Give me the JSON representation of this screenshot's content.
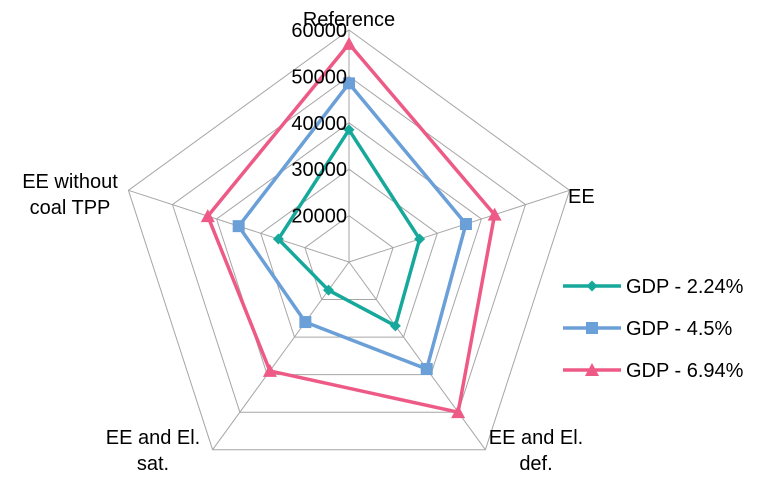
{
  "chart_data": {
    "type": "radar",
    "axes": [
      {
        "label_lines": [
          "Reference"
        ]
      },
      {
        "label_lines": [
          "EE"
        ]
      },
      {
        "label_lines": [
          "EE and El.",
          "def."
        ]
      },
      {
        "label_lines": [
          "EE and El.",
          "sat."
        ]
      },
      {
        "label_lines": [
          "EE without",
          "coal TPP"
        ]
      }
    ],
    "rlim": [
      10000,
      60000
    ],
    "ticks": [
      20000,
      30000,
      40000,
      50000,
      60000
    ],
    "tick_labels": [
      "20000",
      "30000",
      "40000",
      "50000",
      "60000"
    ],
    "grid": true,
    "legend_position": "right",
    "series": [
      {
        "name": "GDP - 2.24%",
        "color": "#17A89C",
        "marker": "diamond",
        "values": [
          38500,
          26000,
          27000,
          17500,
          26000
        ]
      },
      {
        "name": "GDP - 4.5%",
        "color": "#6A9FD8",
        "marker": "square",
        "values": [
          48500,
          36500,
          38500,
          26000,
          35000
        ]
      },
      {
        "name": "GDP - 6.94%",
        "color": "#EE5A86",
        "marker": "triangle",
        "values": [
          57000,
          43000,
          50000,
          39000,
          42000
        ]
      }
    ]
  }
}
